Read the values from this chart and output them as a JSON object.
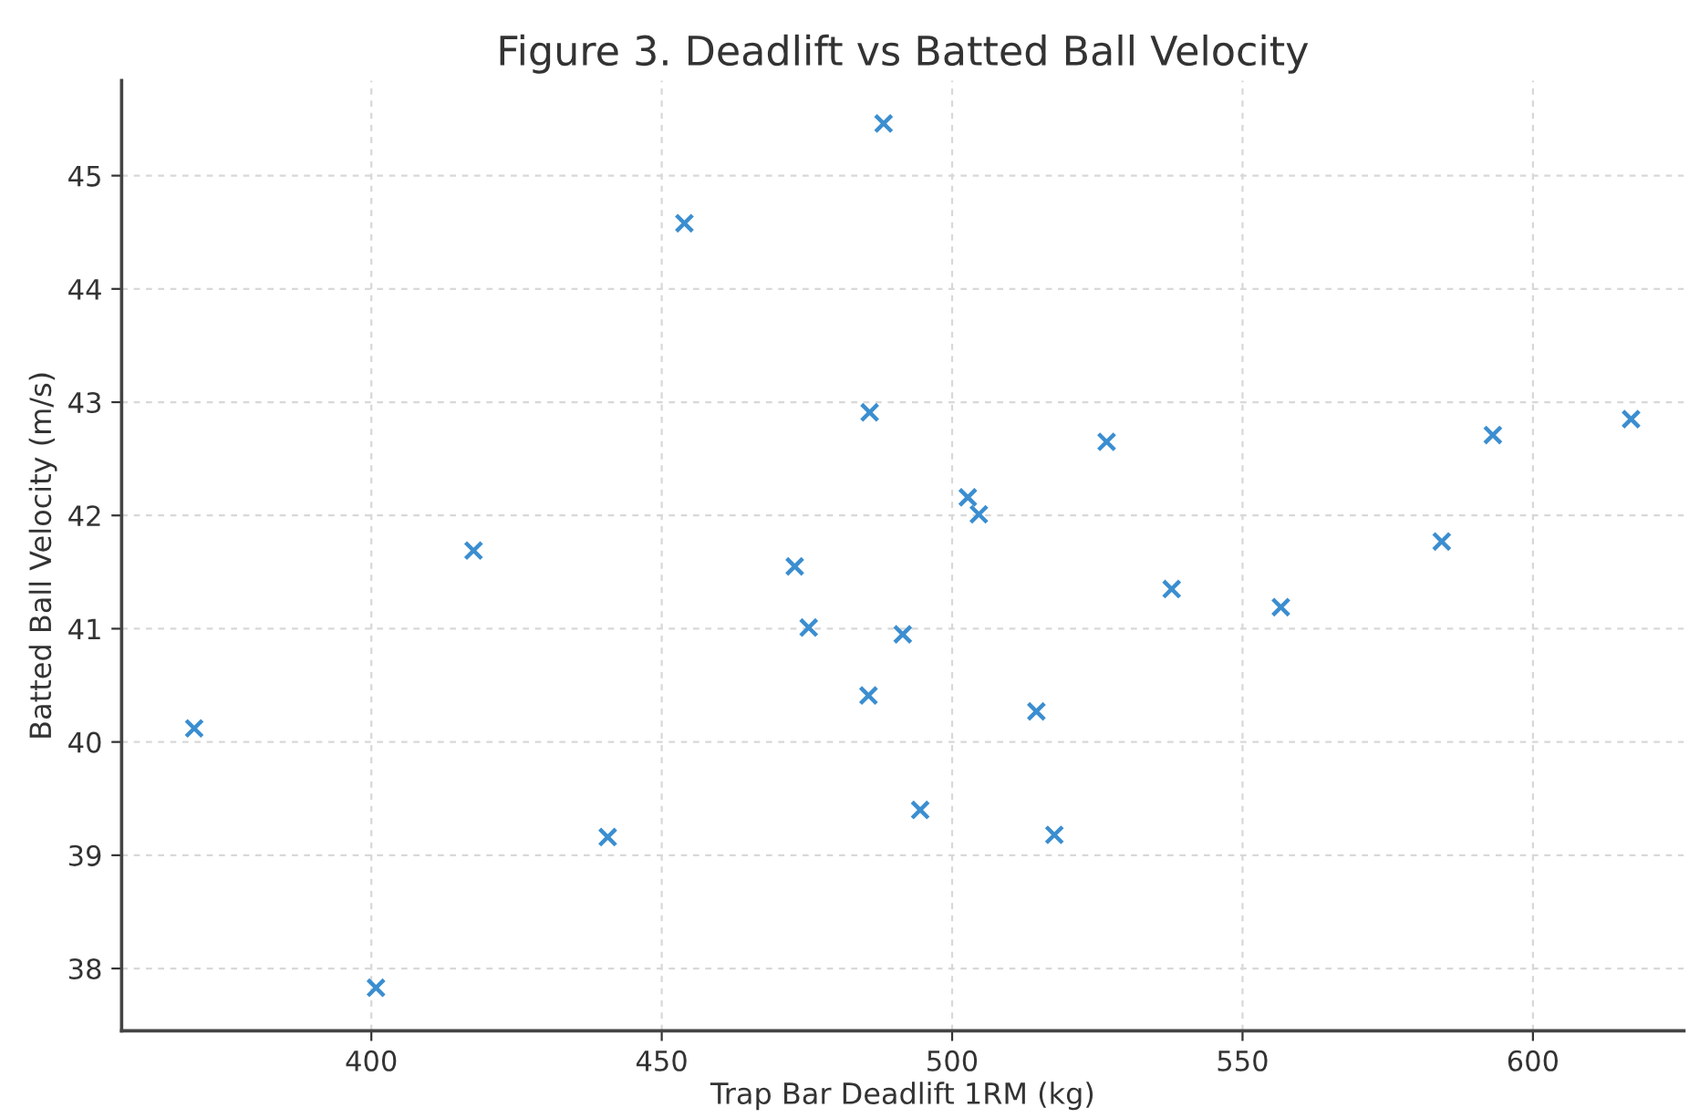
{
  "chart_data": {
    "type": "scatter",
    "title": "Figure 3. Deadlift vs Batted Ball Velocity",
    "xlabel": "Trap Bar Deadlift 1RM (kg)",
    "ylabel": "Batted Ball Velocity (m/s)",
    "x": [
      369.5,
      400.8,
      417.6,
      440.7,
      453.9,
      472.9,
      475.3,
      485.6,
      485.8,
      488.2,
      491.5,
      494.5,
      502.7,
      504.6,
      514.5,
      517.6,
      526.6,
      537.8,
      556.6,
      584.3,
      593.1,
      616.9
    ],
    "series": [
      {
        "color": "#3b8ed0",
        "values": [
          40.12,
          37.83,
          41.69,
          39.16,
          44.58,
          41.55,
          41.01,
          40.41,
          42.91,
          45.46,
          40.95,
          39.4,
          42.16,
          42.01,
          40.27,
          39.18,
          42.65,
          41.35,
          41.19,
          41.77,
          42.71,
          42.85
        ]
      }
    ],
    "xlim": [
      357,
      626
    ],
    "xticks": [
      400,
      450,
      500,
      550,
      600
    ],
    "ylim": [
      37.45,
      45.84
    ],
    "yticks": [
      38,
      39,
      40,
      41,
      42,
      43,
      44,
      45
    ],
    "grid": true,
    "marker": "cross"
  }
}
